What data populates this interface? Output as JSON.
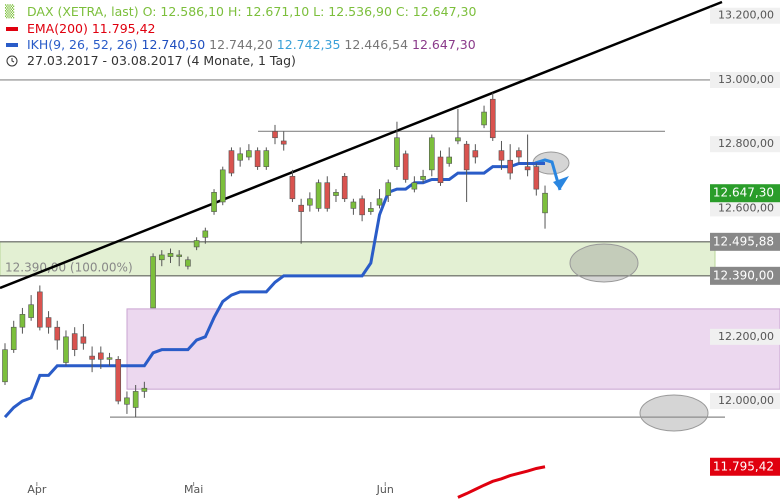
{
  "chart_data": {
    "type": "candlestick",
    "instrument": "DAX (XETRA, last)",
    "ohlc_text": "O: 12.586,10  H: 12.671,10  L: 12.536,90  C: 12.647,30",
    "period": "27.03.2017 - 03.08.2017",
    "period_note": "(4 Monate, 1 Tag)",
    "categories": [
      null,
      null,
      null,
      null,
      "Apr",
      null,
      null,
      null,
      null,
      null,
      null,
      null,
      null,
      null,
      null,
      null,
      null,
      null,
      null,
      null,
      null,
      null,
      "Mai",
      null,
      null,
      null,
      null,
      null,
      null,
      null,
      null,
      null,
      null,
      null,
      null,
      null,
      null,
      null,
      null,
      null,
      null,
      null,
      null,
      null,
      "Jun",
      null,
      null,
      null,
      null,
      null,
      null,
      null,
      null,
      null,
      null,
      null,
      null,
      null,
      null,
      null,
      null,
      null,
      null
    ],
    "open": [
      12060,
      12160,
      12230,
      12260,
      12340,
      12260,
      12230,
      12120,
      12210,
      12200,
      12140,
      12150,
      12130,
      12130,
      11990,
      11980,
      12030,
      12290,
      12440,
      12450,
      12450,
      12420,
      12480,
      12510,
      12590,
      12620,
      12780,
      12750,
      12760,
      12780,
      12730,
      12840,
      12810,
      12700,
      12610,
      12610,
      12600,
      12680,
      12640,
      12700,
      12600,
      12630,
      12590,
      12610,
      12640,
      12730,
      12770,
      12660,
      12690,
      12720,
      12760,
      12740,
      12810,
      12800,
      12780,
      12860,
      12940,
      12780,
      12750,
      12780,
      12730,
      12730,
      12586.1
    ],
    "high": [
      12180,
      12250,
      12290,
      12330,
      12360,
      12280,
      12250,
      12220,
      12230,
      12240,
      12170,
      12170,
      12150,
      12140,
      12030,
      12050,
      12060,
      12460,
      12470,
      12475,
      12470,
      12450,
      12510,
      12540,
      12660,
      12730,
      12790,
      12790,
      12800,
      12790,
      12790,
      12860,
      12840,
      12720,
      12630,
      12650,
      12690,
      12700,
      12660,
      12710,
      12630,
      12640,
      12620,
      12660,
      12690,
      12870,
      12780,
      12700,
      12720,
      12830,
      12780,
      12790,
      12910,
      12810,
      12800,
      12920,
      12960,
      12810,
      12800,
      12790,
      12830,
      12740,
      12671.1
    ],
    "low": [
      12050,
      12150,
      12210,
      12250,
      12220,
      12210,
      12160,
      12110,
      12140,
      12160,
      12090,
      12100,
      12110,
      11990,
      11960,
      11950,
      12010,
      12290,
      12420,
      12430,
      12420,
      12410,
      12470,
      12490,
      12580,
      12610,
      12700,
      12730,
      12750,
      12720,
      12720,
      12800,
      12780,
      12620,
      12490,
      12590,
      12590,
      12590,
      12620,
      12620,
      12580,
      12560,
      12580,
      12600,
      12620,
      12720,
      12680,
      12650,
      12680,
      12700,
      12670,
      12730,
      12800,
      12620,
      12740,
      12850,
      12810,
      12720,
      12690,
      12740,
      12700,
      12640,
      12536.9
    ],
    "close": [
      12160,
      12230,
      12270,
      12300,
      12230,
      12230,
      12190,
      12200,
      12160,
      12180,
      12130,
      12130,
      12135,
      12000,
      12010,
      12030,
      12040,
      12450,
      12455,
      12460,
      12455,
      12440,
      12500,
      12530,
      12650,
      12720,
      12710,
      12770,
      12780,
      12730,
      12780,
      12820,
      12800,
      12630,
      12590,
      12630,
      12680,
      12600,
      12650,
      12630,
      12620,
      12580,
      12600,
      12630,
      12680,
      12820,
      12690,
      12680,
      12700,
      12820,
      12680,
      12760,
      12820,
      12720,
      12760,
      12900,
      12820,
      12750,
      12710,
      12760,
      12720,
      12660,
      12647.3
    ],
    "up_color": "#7cbf3c",
    "down_color": "#d9534f",
    "series": [
      {
        "name": "EMA(200)",
        "value_text": "11.795,42",
        "color": "#e0000f",
        "values": [
          null,
          null,
          null,
          null,
          null,
          null,
          null,
          null,
          null,
          null,
          null,
          null,
          null,
          null,
          null,
          null,
          null,
          null,
          null,
          null,
          null,
          null,
          null,
          null,
          null,
          null,
          null,
          null,
          null,
          null,
          null,
          null,
          null,
          null,
          null,
          null,
          null,
          null,
          null,
          null,
          null,
          null,
          null,
          null,
          null,
          null,
          null,
          null,
          null,
          null,
          null,
          null,
          11700,
          11712,
          11725,
          11738,
          11750,
          11758,
          11768,
          11775,
          11782,
          11790,
          11795.42
        ]
      },
      {
        "name": "IKH(9, 26, 52, 26)",
        "value_texts": [
          "12.740,50",
          "12.744,20",
          "12.742,35",
          "12.446,54",
          "12.647,30"
        ],
        "value_colors": [
          "#1f4fbf",
          "#777777",
          "#3aa0d8",
          "#777777",
          "#8a3a8a"
        ],
        "color": "#2a5cc8",
        "values": [
          11950,
          11980,
          12000,
          12010,
          12080,
          12080,
          12110,
          12110,
          12110,
          12110,
          12110,
          12110,
          12110,
          12110,
          12110,
          12110,
          12110,
          12150,
          12160,
          12160,
          12160,
          12160,
          12190,
          12200,
          12260,
          12310,
          12330,
          12340,
          12340,
          12340,
          12340,
          12370,
          12390,
          12390,
          12390,
          12390,
          12390,
          12390,
          12390,
          12390,
          12390,
          12390,
          12430,
          12580,
          12650,
          12660,
          12660,
          12680,
          12680,
          12690,
          12690,
          12690,
          12710,
          12710,
          12710,
          12710,
          12730,
          12730,
          12730,
          12740,
          12740,
          12740,
          12740
        ]
      }
    ],
    "ylim": [
      11695,
      13249
    ],
    "yticks": [
      {
        "value": 13200,
        "label": "13.200,00"
      },
      {
        "value": 13000,
        "label": "13.000,00"
      },
      {
        "value": 12800,
        "label": "12.800,00"
      },
      {
        "value": 12600,
        "label": "12.600,00"
      },
      {
        "value": 12200,
        "label": "12.200,00"
      },
      {
        "value": 12000,
        "label": "12.000,00"
      }
    ],
    "levels": [
      {
        "value": 12647.3,
        "label": "12.647,30",
        "color": "#2a9d2a"
      },
      {
        "value": 12495.88,
        "label": "12.495,88",
        "color": "#888888"
      },
      {
        "value": 12390,
        "label": "12.390,00",
        "color": "#888888"
      },
      {
        "value": 11795.42,
        "label": "11.795,42",
        "color": "#e0000f"
      }
    ],
    "zones": [
      {
        "from": 12390,
        "to": 12495.88,
        "color": "#e3f0d3"
      },
      {
        "from": 12037,
        "to": 12287,
        "color": "#ecd8ef"
      }
    ],
    "hlines": [
      13000,
      12840,
      11950
    ],
    "annotation": "12.390,00 (100.00%)"
  }
}
